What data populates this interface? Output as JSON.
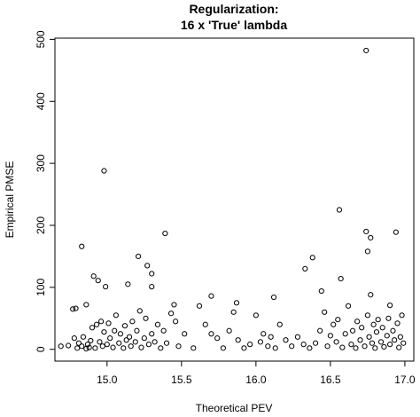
{
  "chart_data": {
    "type": "scatter",
    "title": "Regularization:",
    "subtitle": "16 x 'True' lambda",
    "x_label": "Theoretical PEV",
    "y_label": "Empirical PMSE",
    "xlim": [
      14.65,
      17.06
    ],
    "ylim": [
      -19,
      502
    ],
    "xticks": [
      {
        "value": 15,
        "label": "15.0"
      },
      {
        "value": 15.5,
        "label": "15.5"
      },
      {
        "value": 16,
        "label": "16.0"
      },
      {
        "value": 16.5,
        "label": "16.5"
      },
      {
        "value": 17,
        "label": "17.0"
      }
    ],
    "yticks": [
      0,
      100,
      200,
      300,
      400,
      500
    ],
    "color": "#000000",
    "x": [
      14.74,
      14.77,
      14.79,
      14.83,
      14.91,
      14.94,
      14.98,
      14.99,
      14.86,
      15.14,
      15.21,
      15.27,
      15.3,
      15.39,
      15.3,
      15.45,
      15.7,
      15.87,
      16.12,
      16.33,
      16.38,
      16.44,
      16.56,
      16.57,
      16.74,
      16.74,
      16.75,
      16.77,
      16.94,
      16.77,
      16.9,
      14.69,
      14.78,
      14.8,
      14.81,
      14.83,
      14.84,
      14.86,
      14.87,
      14.88,
      14.89,
      14.9,
      14.92,
      14.93,
      14.95,
      14.96,
      14.97,
      14.98,
      15.0,
      15.01,
      15.02,
      15.04,
      15.05,
      15.06,
      15.08,
      15.09,
      15.11,
      15.12,
      15.13,
      15.15,
      15.16,
      15.17,
      15.19,
      15.2,
      15.22,
      15.23,
      15.25,
      15.26,
      15.28,
      15.3,
      15.32,
      15.34,
      15.36,
      15.38,
      15.4,
      15.43,
      15.46,
      15.48,
      15.52,
      15.58,
      15.62,
      15.66,
      15.7,
      15.74,
      15.78,
      15.82,
      15.85,
      15.88,
      15.92,
      15.96,
      16.0,
      16.03,
      16.05,
      16.08,
      16.1,
      16.13,
      16.16,
      16.2,
      16.24,
      16.28,
      16.32,
      16.36,
      16.4,
      16.43,
      16.46,
      16.48,
      16.5,
      16.52,
      16.54,
      16.55,
      16.58,
      16.6,
      16.62,
      16.64,
      16.65,
      16.67,
      16.68,
      16.7,
      16.71,
      16.73,
      16.75,
      16.76,
      16.78,
      16.79,
      16.8,
      16.81,
      16.82,
      16.84,
      16.85,
      16.86,
      16.88,
      16.89,
      16.9,
      16.92,
      16.93,
      16.95,
      16.96,
      16.97,
      16.98,
      16.99
    ],
    "values": [
      6,
      65,
      66,
      166,
      118,
      111,
      288,
      101,
      72,
      105,
      150,
      135,
      122,
      187,
      101,
      72,
      86,
      75,
      84,
      130,
      148,
      94,
      225,
      114,
      482,
      190,
      158,
      180,
      189,
      88,
      71,
      5,
      18,
      2,
      10,
      5,
      20,
      1,
      8,
      3,
      14,
      35,
      2,
      40,
      12,
      45,
      5,
      28,
      8,
      42,
      18,
      3,
      30,
      55,
      10,
      25,
      2,
      38,
      15,
      20,
      5,
      45,
      12,
      30,
      62,
      3,
      18,
      50,
      8,
      25,
      12,
      40,
      2,
      30,
      10,
      58,
      45,
      5,
      25,
      2,
      70,
      40,
      25,
      18,
      2,
      30,
      60,
      15,
      2,
      8,
      55,
      12,
      25,
      5,
      20,
      2,
      40,
      15,
      5,
      20,
      8,
      2,
      10,
      30,
      60,
      5,
      22,
      40,
      12,
      48,
      3,
      25,
      70,
      8,
      30,
      2,
      45,
      15,
      35,
      5,
      55,
      20,
      10,
      40,
      2,
      28,
      48,
      12,
      35,
      4,
      22,
      50,
      8,
      30,
      15,
      42,
      3,
      20,
      55,
      10
    ]
  }
}
